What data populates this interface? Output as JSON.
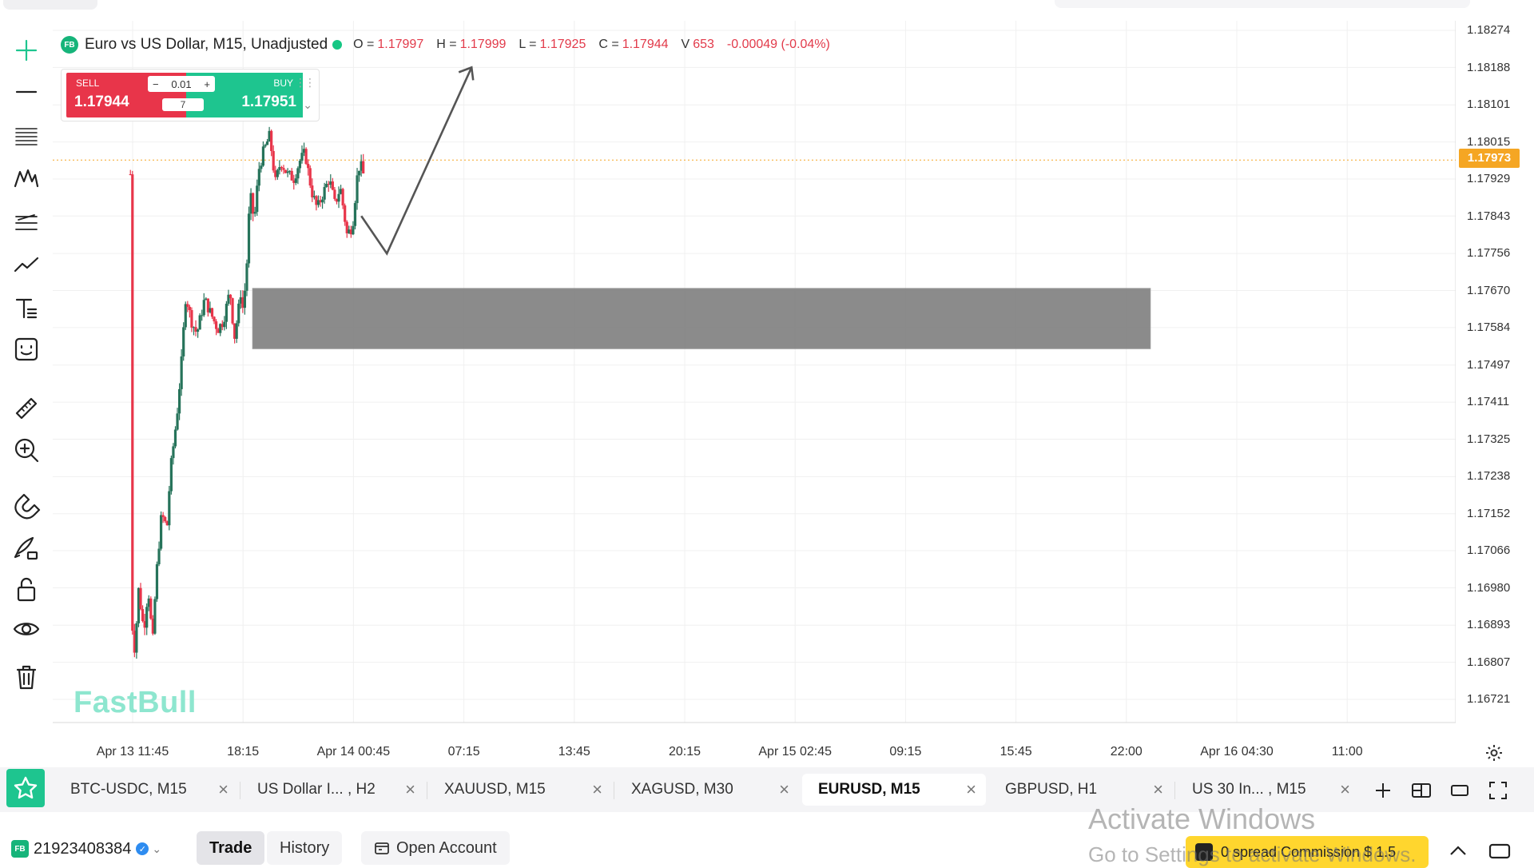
{
  "symbol": {
    "badge": "FB",
    "title": "Euro vs US Dollar, M15, Unadjusted",
    "ohlc": [
      {
        "k": "O =",
        "v": "1.17997"
      },
      {
        "k": "H =",
        "v": "1.17999"
      },
      {
        "k": "L =",
        "v": "1.17925"
      },
      {
        "k": "C =",
        "v": "1.17944"
      },
      {
        "k": "V",
        "v": "653"
      }
    ],
    "change": "-0.00049 (-0.04%)"
  },
  "trade": {
    "sell_label": "SELL",
    "sell_price": "1.17944",
    "buy_label": "BUY",
    "buy_price": "1.17951",
    "lot": "0.01",
    "spread": "7",
    "minus": "−",
    "plus": "+"
  },
  "watermark": "FastBull",
  "price_axis": [
    "1.18274",
    "1.18188",
    "1.18101",
    "1.18015",
    "1.17929",
    "1.17843",
    "1.17756",
    "1.17670",
    "1.17584",
    "1.17497",
    "1.17411",
    "1.17325",
    "1.17238",
    "1.17152",
    "1.17066",
    "1.16980",
    "1.16893",
    "1.16807",
    "1.16721"
  ],
  "current_price": "1.17973",
  "time_axis": [
    "Apr 13 11:45",
    "18:15",
    "Apr 14 00:45",
    "07:15",
    "13:45",
    "20:15",
    "Apr 15 02:45",
    "09:15",
    "15:45",
    "22:00",
    "Apr 16 04:30",
    "11:00"
  ],
  "tabs": [
    {
      "label": "BTC-USDC, M15",
      "active": false
    },
    {
      "label": "US Dollar I... , H2",
      "active": false
    },
    {
      "label": "XAUUSD, M15",
      "active": false
    },
    {
      "label": "XAGUSD, M30",
      "active": false
    },
    {
      "label": "EURUSD, M15",
      "active": true
    },
    {
      "label": "GBPUSD, H1",
      "active": false
    },
    {
      "label": "US 30 In... , M15",
      "active": false
    }
  ],
  "tab_close": "×",
  "bottom": {
    "account_badge": "FB",
    "account_id": "21923408384",
    "trade": "Trade",
    "history": "History",
    "open_account": "Open Account",
    "promo": "0 spread Commission $ 1.5"
  },
  "os_overlay": {
    "line1": "Activate Windows",
    "line2": "Go to Settings to activate Windows."
  },
  "colors": {
    "up": "#26735a",
    "down": "#e8354a",
    "zone": "#7b7b7b",
    "current_price": "#f5a623",
    "accent": "#1ec58f"
  },
  "chart_data": {
    "type": "candlestick",
    "title": "Euro vs US Dollar, M15, Unadjusted",
    "x_labels": [
      "Apr 13 11:45",
      "18:15",
      "Apr 14 00:45",
      "07:15",
      "13:45",
      "20:15",
      "Apr 15 02:45",
      "09:15",
      "15:45",
      "22:00",
      "Apr 16 04:30",
      "11:00"
    ],
    "ylim": [
      1.1668,
      1.1831
    ],
    "current_price": 1.17973,
    "zone": {
      "from_label": "18:15",
      "to_label": "22:00",
      "top": 1.17675,
      "bottom": 1.17535
    },
    "projection": [
      1.17843,
      1.17756,
      1.18188
    ],
    "anchors": [
      {
        "at": 0,
        "price": 1.1693
      },
      {
        "at": 0.04,
        "price": 1.1683
      },
      {
        "at": 0.07,
        "price": 1.1698
      },
      {
        "at": 0.12,
        "price": 1.1688
      },
      {
        "at": 0.16,
        "price": 1.1698
      },
      {
        "at": 0.2,
        "price": 1.1685
      },
      {
        "at": 0.23,
        "price": 1.17
      },
      {
        "at": 0.28,
        "price": 1.1715
      },
      {
        "at": 0.33,
        "price": 1.1712
      },
      {
        "at": 0.36,
        "price": 1.1725
      },
      {
        "at": 0.42,
        "price": 1.1738
      },
      {
        "at": 0.46,
        "price": 1.175
      },
      {
        "at": 0.5,
        "price": 1.1766
      },
      {
        "at": 0.55,
        "price": 1.176
      },
      {
        "at": 0.6,
        "price": 1.1757
      },
      {
        "at": 0.67,
        "price": 1.1765
      },
      {
        "at": 0.72,
        "price": 1.1762
      },
      {
        "at": 0.79,
        "price": 1.1758
      },
      {
        "at": 0.84,
        "price": 1.176
      },
      {
        "at": 0.9,
        "price": 1.1767
      },
      {
        "at": 0.94,
        "price": 1.1756
      },
      {
        "at": 0.98,
        "price": 1.1763
      },
      {
        "at": 1.0,
        "price": 1.1767
      },
      {
        "at": 1.02,
        "price": 1.1762
      },
      {
        "at": 1.06,
        "price": 1.1776
      },
      {
        "at": 1.08,
        "price": 1.179
      },
      {
        "at": 1.12,
        "price": 1.1783
      },
      {
        "at": 1.16,
        "price": 1.1795
      },
      {
        "at": 1.2,
        "price": 1.1799
      },
      {
        "at": 1.26,
        "price": 1.1803
      },
      {
        "at": 1.31,
        "price": 1.1792
      },
      {
        "at": 1.36,
        "price": 1.1797
      },
      {
        "at": 1.42,
        "price": 1.1794
      },
      {
        "at": 1.48,
        "price": 1.1793
      },
      {
        "at": 1.53,
        "price": 1.1797
      },
      {
        "at": 1.58,
        "price": 1.1799
      },
      {
        "at": 1.64,
        "price": 1.179
      },
      {
        "at": 1.69,
        "price": 1.1786
      },
      {
        "at": 1.75,
        "price": 1.179
      },
      {
        "at": 1.8,
        "price": 1.1793
      },
      {
        "at": 1.85,
        "price": 1.1787
      },
      {
        "at": 1.9,
        "price": 1.1791
      },
      {
        "at": 1.96,
        "price": 1.178
      },
      {
        "at": 2.01,
        "price": 1.1782
      },
      {
        "at": 2.05,
        "price": 1.1793
      },
      {
        "at": 2.08,
        "price": 1.1797
      },
      {
        "at": 2.1,
        "price": 1.1794
      }
    ]
  }
}
